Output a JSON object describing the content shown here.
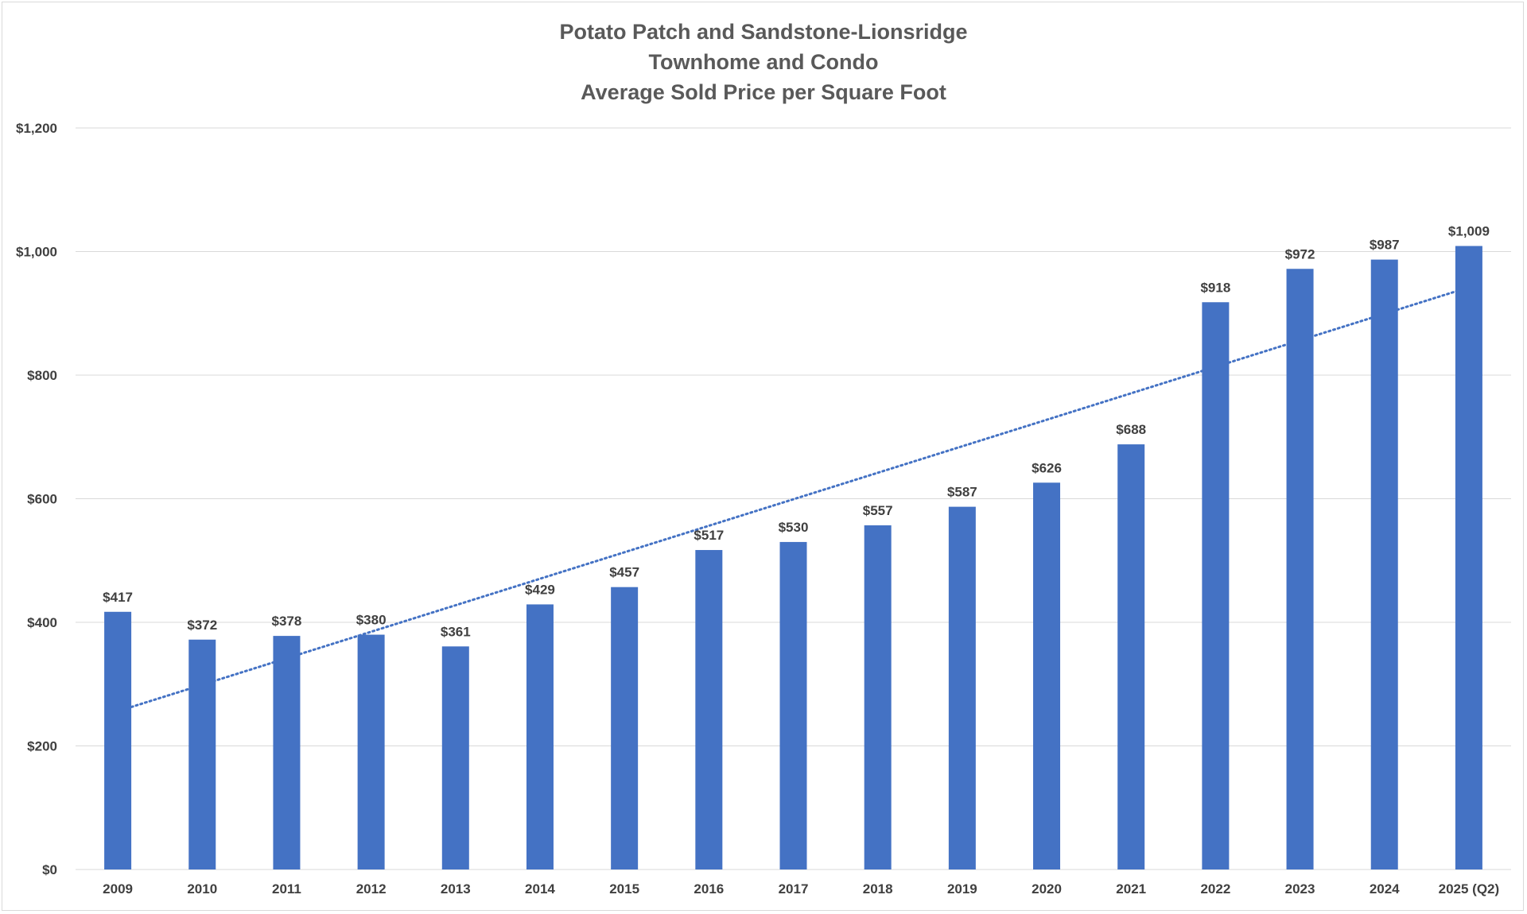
{
  "chart_data": {
    "type": "bar",
    "title": [
      "Potato Patch and Sandstone-Lionsridge",
      "Townhome and Condo",
      "Average Sold Price per Square Foot"
    ],
    "categories": [
      "2009",
      "2010",
      "2011",
      "2012",
      "2013",
      "2014",
      "2015",
      "2016",
      "2017",
      "2018",
      "2019",
      "2020",
      "2021",
      "2022",
      "2023",
      "2024",
      "2025 (Q2)"
    ],
    "values": [
      417,
      372,
      378,
      380,
      361,
      429,
      457,
      517,
      530,
      557,
      587,
      626,
      688,
      918,
      972,
      987,
      1009
    ],
    "data_labels": [
      "$417",
      "$372",
      "$378",
      "$380",
      "$361",
      "$429",
      "$457",
      "$517",
      "$530",
      "$557",
      "$587",
      "$626",
      "$688",
      "$918",
      "$972",
      "$987",
      "$1,009"
    ],
    "ylim": [
      0,
      1200
    ],
    "yticks": [
      0,
      200,
      400,
      600,
      800,
      1000,
      1200
    ],
    "ytick_labels": [
      "$0",
      "$200",
      "$400",
      "$600",
      "$800",
      "$1,000",
      "$1,200"
    ],
    "xlabel": "",
    "ylabel": "",
    "grid": true,
    "legend": "none",
    "trendline": {
      "type": "linear",
      "style": "dotted",
      "color": "#4472C4"
    },
    "colors": {
      "bar": "#4472C4",
      "grid": "#d9d9d9",
      "text": "#404040",
      "title": "#595959"
    }
  }
}
